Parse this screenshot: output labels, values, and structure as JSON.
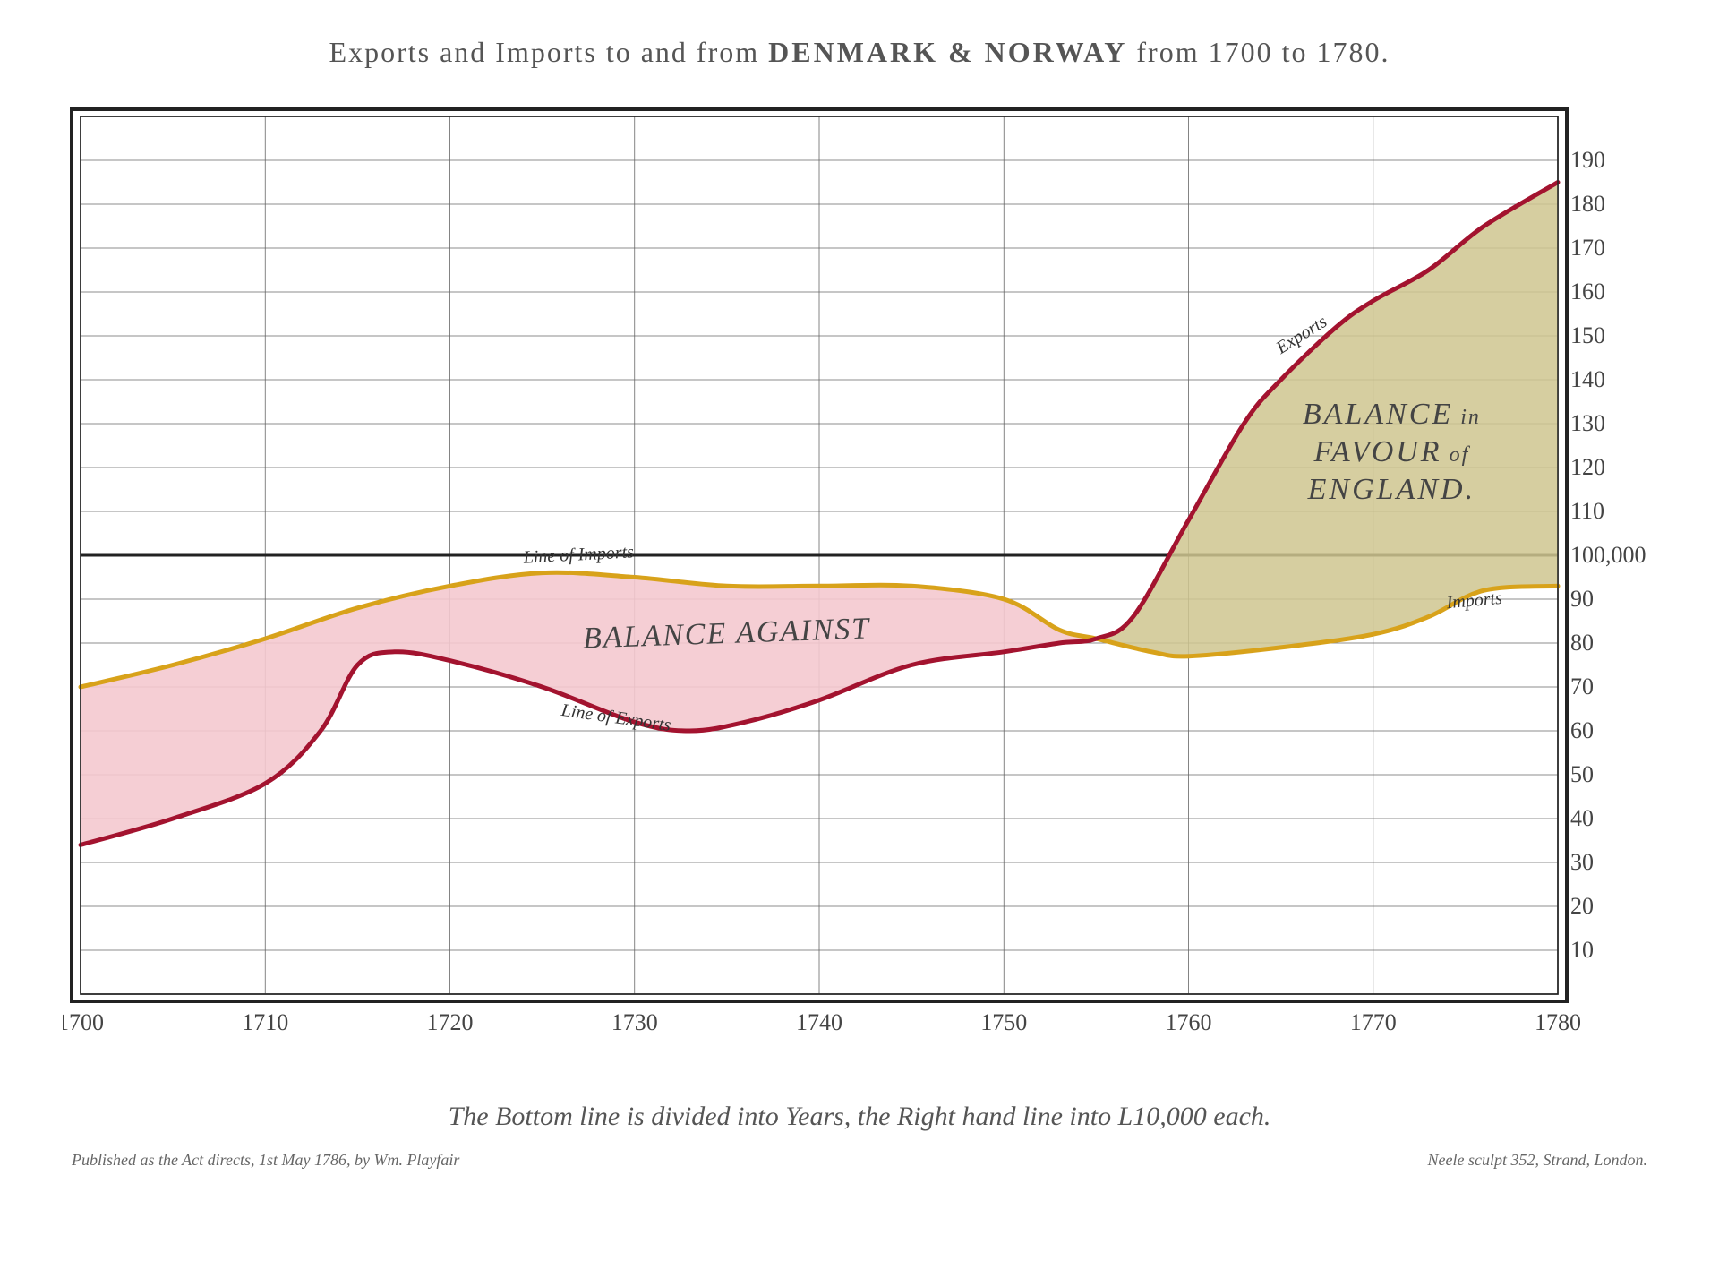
{
  "title": {
    "part1": "Exports and Imports to and from ",
    "part2": "DENMARK & NORWAY",
    "part3": " from 1700 to 1780."
  },
  "caption": "The Bottom line is divided into Years, the Right hand line into L10,000 each.",
  "publisher_left": "Published as the Act directs, 1st May 1786, by Wm. Playfair",
  "publisher_right": "Neele sculpt 352, Strand, London.",
  "chart": {
    "type": "area-between-lines",
    "background_color": "#ffffff",
    "frame_color": "#222222",
    "frame_stroke_outer": 4,
    "frame_stroke_inner": 1.5,
    "grid_color": "#666666",
    "grid_stroke": 0.8,
    "major_horizontal_value": 100,
    "major_horizontal_stroke": 3,
    "x": {
      "min": 1700,
      "max": 1780,
      "ticks": [
        1700,
        1710,
        1720,
        1730,
        1740,
        1750,
        1760,
        1770,
        1780
      ],
      "label_fontsize": 26
    },
    "y": {
      "min": 0,
      "max": 200,
      "ticks": [
        10,
        20,
        30,
        40,
        50,
        60,
        70,
        80,
        90,
        110,
        120,
        130,
        140,
        150,
        160,
        170,
        180,
        190
      ],
      "major_tick_label": "100,000",
      "label_fontsize": 22
    },
    "series": {
      "imports": {
        "label": "Line of Imports",
        "short_label": "Imports",
        "stroke_color": "#d8a21a",
        "stroke_width": 5,
        "points": [
          [
            1700,
            70
          ],
          [
            1705,
            75
          ],
          [
            1710,
            81
          ],
          [
            1715,
            88
          ],
          [
            1720,
            93
          ],
          [
            1725,
            96
          ],
          [
            1730,
            95
          ],
          [
            1735,
            93
          ],
          [
            1740,
            93
          ],
          [
            1745,
            93
          ],
          [
            1750,
            90
          ],
          [
            1753,
            83
          ],
          [
            1755,
            81
          ],
          [
            1758,
            78
          ],
          [
            1760,
            77
          ],
          [
            1765,
            79
          ],
          [
            1770,
            82
          ],
          [
            1773,
            86
          ],
          [
            1776,
            92
          ],
          [
            1780,
            93
          ]
        ]
      },
      "exports": {
        "label": "Line of Exports",
        "short_label": "Exports",
        "stroke_color": "#a3132f",
        "stroke_width": 5,
        "points": [
          [
            1700,
            34
          ],
          [
            1705,
            40
          ],
          [
            1710,
            48
          ],
          [
            1713,
            60
          ],
          [
            1715,
            75
          ],
          [
            1717,
            78
          ],
          [
            1720,
            76
          ],
          [
            1725,
            70
          ],
          [
            1730,
            62
          ],
          [
            1733,
            60
          ],
          [
            1736,
            62
          ],
          [
            1740,
            67
          ],
          [
            1745,
            75
          ],
          [
            1750,
            78
          ],
          [
            1753,
            80
          ],
          [
            1755,
            81
          ],
          [
            1757,
            86
          ],
          [
            1760,
            108
          ],
          [
            1763,
            130
          ],
          [
            1765,
            140
          ],
          [
            1768,
            152
          ],
          [
            1770,
            158
          ],
          [
            1773,
            165
          ],
          [
            1776,
            175
          ],
          [
            1780,
            185
          ]
        ]
      }
    },
    "fills": {
      "balance_against": {
        "label": "BALANCE AGAINST",
        "color": "#f4c9cf",
        "opacity": 0.9
      },
      "balance_favour": {
        "label_line1": "BALANCE in",
        "label_line2": "FAVOUR of",
        "label_line3": "ENGLAND.",
        "color": "#cfc58f",
        "opacity": 0.85
      }
    },
    "crossover_year": 1755
  }
}
